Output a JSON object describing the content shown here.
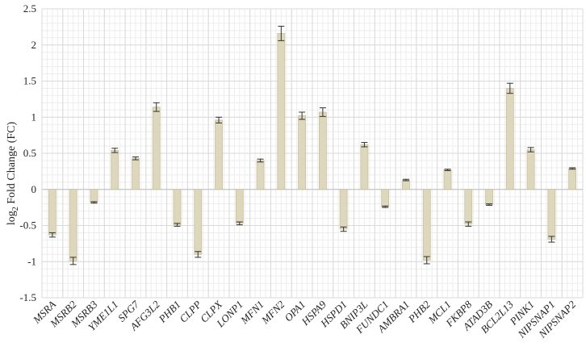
{
  "chart_data": {
    "type": "bar",
    "title": "",
    "xlabel": "",
    "ylabel": {
      "prefix": "log",
      "subscript": "2",
      "suffix": " Fold Change (FC)"
    },
    "ylim": [
      -1.5,
      2.5
    ],
    "yticks": [
      "-1.5",
      "-1",
      "-0.5",
      "0",
      "0.5",
      "1",
      "1.5",
      "2",
      "2.5"
    ],
    "grid": true,
    "categories": [
      "MSRA",
      "MSRB2",
      "MSRB3",
      "YME1L1",
      "SPG7",
      "AFG3L2",
      "PHB1",
      "CLPP",
      "CLPX",
      "LONP1",
      "MFN1",
      "MFN2",
      "OPA1",
      "HSPA9",
      "HSPD1",
      "BNIP3L",
      "FUNDC1",
      "AMBRA1",
      "PHB2",
      "MCL1",
      "FKBP8",
      "ATAD3B",
      "BCL2L13",
      "PINK1",
      "NIPSNAP1",
      "NIPSNAP2"
    ],
    "values": [
      -0.63,
      -0.99,
      -0.18,
      0.54,
      0.43,
      1.14,
      -0.49,
      -0.9,
      0.96,
      -0.47,
      0.4,
      2.16,
      1.02,
      1.07,
      -0.55,
      0.62,
      -0.24,
      0.13,
      -0.98,
      0.27,
      -0.48,
      -0.21,
      1.4,
      0.55,
      -0.69,
      0.29
    ],
    "errors": [
      0.03,
      0.05,
      0.01,
      0.03,
      0.02,
      0.06,
      0.02,
      0.04,
      0.04,
      0.02,
      0.02,
      0.1,
      0.05,
      0.06,
      0.03,
      0.03,
      0.01,
      0.01,
      0.05,
      0.01,
      0.03,
      0.01,
      0.07,
      0.03,
      0.04,
      0.01
    ],
    "colors": {
      "bar_fill": "#ddd8bd",
      "bar_stroke": "#c9c09b",
      "error_bar": "#333333",
      "major_grid": "#d9d9d9",
      "minor_grid": "#ededed",
      "zero_line": "#bfbfbf"
    }
  }
}
